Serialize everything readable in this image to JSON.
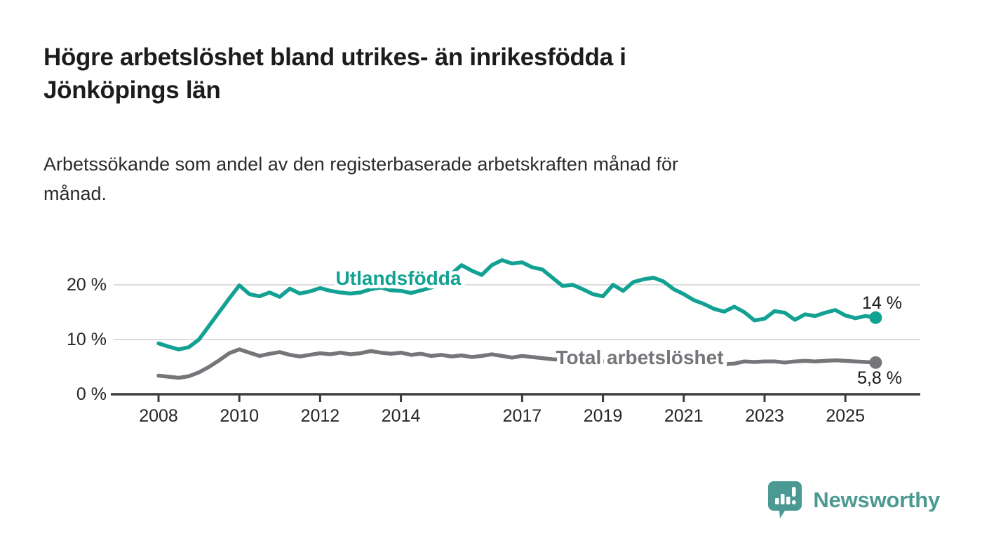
{
  "header": {
    "title": "Högre arbetslöshet bland utrikes- än inrikesfödda i\nJönköpings län",
    "subtitle": "Arbetssökande som andel av den registerbaserade arbetskraften månad för\nmånad."
  },
  "chart_data": {
    "type": "line",
    "x_unit": "year-month",
    "x_start": 2008.0,
    "x_step": 0.25,
    "x_ticks": [
      2008,
      2010,
      2012,
      2014,
      2017,
      2019,
      2021,
      2023,
      2025
    ],
    "y_ticks": [
      {
        "value": 0,
        "label": "0 %"
      },
      {
        "value": 10,
        "label": "10 %"
      },
      {
        "value": 20,
        "label": "20 %"
      }
    ],
    "ylim": [
      0,
      26
    ],
    "grid": "horizontal",
    "series": [
      {
        "name": "Utlandsfödda",
        "color": "#12a192",
        "end_label": "14 %",
        "values": [
          9.3,
          8.7,
          8.2,
          8.6,
          10.0,
          12.5,
          15.0,
          17.5,
          19.9,
          18.3,
          17.9,
          18.6,
          17.8,
          19.3,
          18.4,
          18.8,
          19.4,
          18.9,
          18.6,
          18.4,
          18.6,
          19.2,
          19.5,
          19.0,
          18.9,
          18.5,
          19.0,
          19.5,
          20.3,
          22.0,
          23.6,
          22.6,
          21.8,
          23.6,
          24.5,
          23.9,
          24.1,
          23.2,
          22.8,
          21.3,
          19.8,
          20.0,
          19.2,
          18.3,
          17.9,
          20.0,
          18.9,
          20.5,
          21.0,
          21.3,
          20.6,
          19.2,
          18.3,
          17.2,
          16.5,
          15.6,
          15.1,
          16.0,
          15.0,
          13.5,
          13.8,
          15.2,
          14.9,
          13.6,
          14.6,
          14.3,
          14.9,
          15.4,
          14.4,
          13.9,
          14.3,
          14.0
        ]
      },
      {
        "name": "Total arbetslöshet",
        "color": "#76757a",
        "end_label": "5,8 %",
        "values": [
          3.4,
          3.2,
          3.0,
          3.3,
          4.0,
          5.0,
          6.2,
          7.5,
          8.2,
          7.6,
          7.0,
          7.4,
          7.7,
          7.2,
          6.9,
          7.2,
          7.5,
          7.3,
          7.6,
          7.3,
          7.5,
          7.9,
          7.6,
          7.4,
          7.6,
          7.2,
          7.4,
          7.0,
          7.2,
          6.9,
          7.1,
          6.8,
          7.0,
          7.3,
          7.0,
          6.7,
          7.0,
          6.8,
          6.6,
          6.4,
          6.3,
          6.2,
          6.1,
          6.0,
          6.0,
          6.1,
          6.2,
          6.5,
          6.8,
          7.4,
          7.6,
          7.3,
          7.0,
          6.5,
          6.0,
          5.4,
          5.5,
          5.6,
          6.0,
          5.9,
          6.0,
          6.0,
          5.8,
          6.0,
          6.1,
          6.0,
          6.1,
          6.2,
          6.1,
          6.0,
          5.9,
          5.8
        ]
      }
    ]
  },
  "style": {
    "gridline_color": "#dcdcdc",
    "axis_line_color": "#3c3c3c",
    "text_color": "#262626"
  },
  "footer": {
    "brand": "Newsworthy",
    "brand_color": "#4a9a93",
    "logo_icon": "newsworthy-speech-bubble-bar-chart-icon"
  }
}
